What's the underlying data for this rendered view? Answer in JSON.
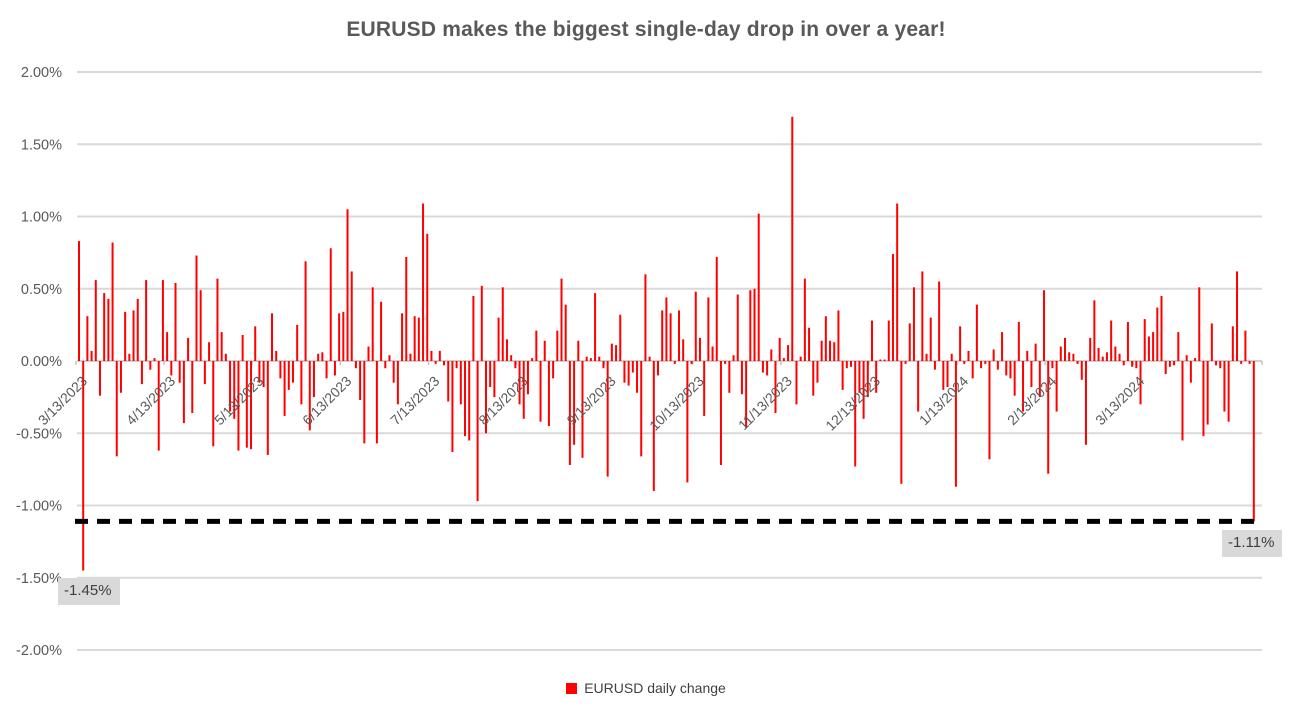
{
  "title": "EURUSD makes the biggest single-day drop in over a year!",
  "legend": {
    "label": "EURUSD daily change",
    "marker_color": "#FF0000"
  },
  "colors": {
    "bar": "#FF0000",
    "gridline": "#D9D9D9",
    "axis_line": "#BFBFBF",
    "tick_text": "#595959",
    "annotation_bg": "#D9D9D9",
    "annotation_text": "#3F3F3F",
    "threshold_line": "#000000"
  },
  "annotations": {
    "low_2023": {
      "text": "-1.45%",
      "value": -1.45
    },
    "current_drop": {
      "text": "-1.11%",
      "value": -1.11
    }
  },
  "chart_data": {
    "type": "bar",
    "title": "EURUSD makes the biggest single-day drop in over a year!",
    "series_name": "EURUSD daily change",
    "xlabel": "",
    "ylabel": "",
    "ylim": [
      -2.0,
      2.0
    ],
    "y_step": 0.5,
    "grid": true,
    "legend_position": "bottom",
    "y_tick_labels": [
      "2.00%",
      "1.50%",
      "1.00%",
      "0.50%",
      "0.00%",
      "-0.50%",
      "-1.00%",
      "-1.50%",
      "-2.00%"
    ],
    "x_tick_labels": [
      "3/13/2023",
      "4/13/2023",
      "5/13/2023",
      "6/13/2023",
      "7/13/2023",
      "8/13/2023",
      "9/13/2023",
      "10/13/2023",
      "11/13/2023",
      "12/13/2023",
      "1/13/2024",
      "2/13/2024",
      "3/13/2024"
    ],
    "x_tick_indices": [
      0,
      21,
      42,
      63,
      84,
      105,
      126,
      147,
      168,
      189,
      210,
      231,
      252
    ],
    "threshold": {
      "value": -1.11,
      "style": "dashed",
      "color": "#000000",
      "label": "-1.11%"
    },
    "min_label": {
      "value": -1.45,
      "label": "-1.45%"
    },
    "values": [
      0.83,
      -1.45,
      0.31,
      0.07,
      0.56,
      -0.24,
      0.47,
      0.43,
      0.82,
      -0.66,
      -0.22,
      0.34,
      0.05,
      0.35,
      0.43,
      -0.16,
      0.56,
      -0.06,
      0.02,
      -0.62,
      0.56,
      0.2,
      -0.1,
      0.54,
      -0.15,
      -0.43,
      0.16,
      -0.36,
      0.73,
      0.49,
      -0.16,
      0.13,
      -0.59,
      0.57,
      0.2,
      0.05,
      -0.35,
      -0.4,
      -0.62,
      0.18,
      -0.6,
      -0.61,
      0.24,
      -0.15,
      -0.18,
      -0.65,
      0.33,
      0.07,
      -0.12,
      -0.38,
      -0.2,
      -0.15,
      0.25,
      -0.3,
      0.69,
      -0.48,
      -0.25,
      0.05,
      0.06,
      -0.12,
      0.78,
      -0.1,
      0.33,
      0.34,
      1.05,
      0.62,
      -0.05,
      -0.27,
      -0.57,
      0.1,
      0.51,
      -0.57,
      0.41,
      -0.05,
      0.04,
      -0.15,
      -0.3,
      0.33,
      0.72,
      0.05,
      0.31,
      0.3,
      1.09,
      0.88,
      0.07,
      -0.02,
      0.07,
      -0.03,
      -0.28,
      -0.63,
      -0.05,
      -0.3,
      -0.52,
      -0.55,
      0.45,
      -0.97,
      0.52,
      -0.5,
      -0.18,
      -0.25,
      0.3,
      0.51,
      0.15,
      0.04,
      -0.05,
      -0.3,
      -0.4,
      -0.23,
      0.02,
      0.21,
      -0.42,
      0.14,
      -0.45,
      -0.12,
      0.21,
      0.57,
      0.39,
      -0.72,
      -0.58,
      0.14,
      -0.67,
      0.03,
      0.02,
      0.47,
      0.03,
      -0.05,
      -0.8,
      0.12,
      0.11,
      0.32,
      -0.15,
      -0.17,
      -0.08,
      -0.22,
      -0.66,
      0.6,
      0.03,
      -0.9,
      -0.1,
      0.35,
      0.44,
      0.33,
      -0.02,
      0.35,
      0.15,
      -0.84,
      -0.02,
      0.48,
      0.16,
      -0.38,
      0.44,
      0.1,
      0.72,
      -0.72,
      -0.02,
      -0.22,
      0.04,
      0.46,
      -0.23,
      -0.46,
      0.49,
      0.5,
      1.02,
      -0.08,
      -0.1,
      0.08,
      -0.36,
      0.16,
      0.02,
      0.11,
      1.69,
      -0.3,
      0.03,
      0.57,
      0.23,
      -0.24,
      -0.15,
      0.14,
      0.31,
      0.14,
      0.13,
      0.35,
      -0.2,
      -0.05,
      -0.04,
      -0.73,
      -0.22,
      -0.4,
      -0.25,
      0.28,
      -0.22,
      0.01,
      0.01,
      0.28,
      0.74,
      1.09,
      -0.85,
      -0.02,
      0.26,
      0.51,
      -0.35,
      0.62,
      0.05,
      0.3,
      -0.06,
      0.55,
      -0.2,
      -0.18,
      0.05,
      -0.87,
      0.24,
      -0.02,
      0.07,
      -0.12,
      0.39,
      -0.05,
      -0.02,
      -0.68,
      0.08,
      -0.06,
      0.2,
      -0.1,
      -0.12,
      -0.24,
      0.27,
      -0.35,
      0.07,
      -0.18,
      0.12,
      -0.25,
      0.49,
      -0.78,
      -0.05,
      -0.35,
      0.1,
      0.16,
      0.06,
      0.05,
      -0.02,
      -0.13,
      -0.58,
      0.16,
      0.42,
      0.09,
      0.03,
      0.06,
      0.28,
      0.1,
      0.05,
      -0.03,
      0.27,
      -0.04,
      -0.05,
      -0.3,
      0.29,
      0.17,
      0.2,
      0.37,
      0.45,
      -0.09,
      -0.04,
      -0.03,
      0.2,
      -0.55,
      0.04,
      -0.15,
      0.02,
      0.51,
      -0.52,
      -0.44,
      0.26,
      -0.03,
      -0.05,
      -0.35,
      -0.42,
      0.24,
      0.62,
      -0.02,
      0.21,
      -0.02,
      -1.11
    ]
  }
}
